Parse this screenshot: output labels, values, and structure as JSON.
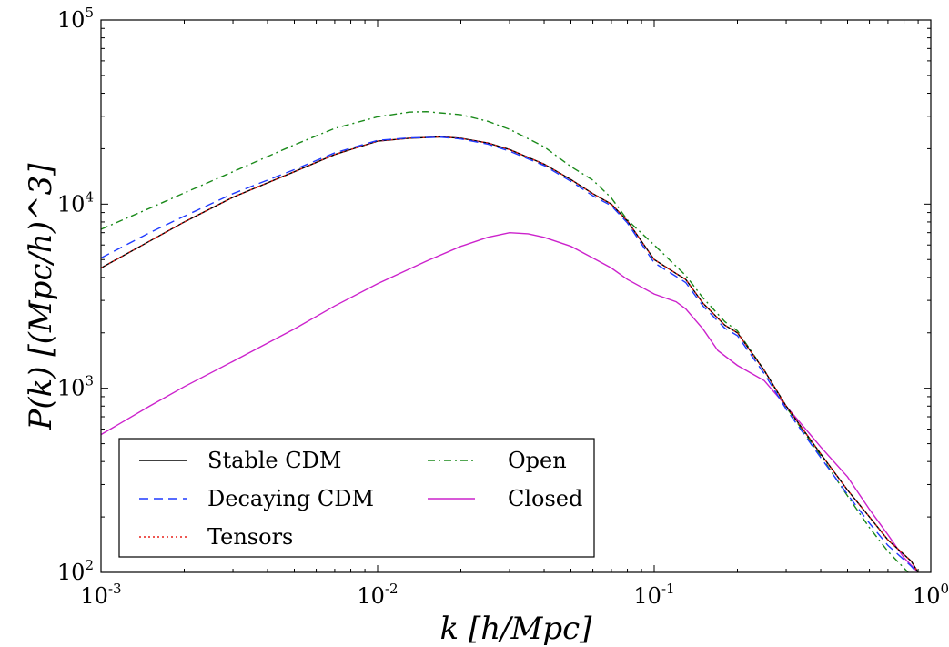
{
  "chart_data": {
    "type": "line",
    "xscale": "log",
    "yscale": "log",
    "xlim": [
      0.001,
      1
    ],
    "ylim": [
      100,
      100000
    ],
    "xlabel": "k [h/Mpc]",
    "ylabel": "P(k) [(Mpc/h)^3]",
    "grid": false,
    "legend_position": "lower-left",
    "x_ticks": [
      {
        "value": 0.001,
        "base": "10",
        "exp": "-3"
      },
      {
        "value": 0.01,
        "base": "10",
        "exp": "-2"
      },
      {
        "value": 0.1,
        "base": "10",
        "exp": "-1"
      },
      {
        "value": 1,
        "base": "10",
        "exp": "0"
      }
    ],
    "y_ticks": [
      {
        "value": 100,
        "base": "10",
        "exp": "2"
      },
      {
        "value": 1000,
        "base": "10",
        "exp": "3"
      },
      {
        "value": 10000,
        "base": "10",
        "exp": "4"
      },
      {
        "value": 100000,
        "base": "10",
        "exp": "5"
      }
    ],
    "series": [
      {
        "name": "Stable CDM",
        "color": "#000000",
        "dash": "",
        "x": [
          0.001,
          0.0015,
          0.002,
          0.003,
          0.005,
          0.007,
          0.01,
          0.013,
          0.017,
          0.02,
          0.025,
          0.03,
          0.04,
          0.05,
          0.06,
          0.07,
          0.08,
          0.1,
          0.12,
          0.13,
          0.15,
          0.18,
          0.2,
          0.25,
          0.3,
          0.4,
          0.5,
          0.6,
          0.7,
          0.85,
          0.9
        ],
        "y": [
          4500,
          6300,
          8000,
          10900,
          15000,
          18600,
          22000,
          22800,
          23200,
          22800,
          21500,
          19800,
          16500,
          13600,
          11400,
          10000,
          8100,
          5000,
          4200,
          3900,
          2900,
          2200,
          2000,
          1250,
          800,
          440,
          280,
          200,
          150,
          115,
          100
        ]
      },
      {
        "name": "Decaying CDM",
        "color": "#1f3aff",
        "dash": "10,6",
        "x": [
          0.001,
          0.0015,
          0.002,
          0.003,
          0.005,
          0.007,
          0.01,
          0.013,
          0.017,
          0.02,
          0.025,
          0.03,
          0.04,
          0.05,
          0.06,
          0.07,
          0.08,
          0.1,
          0.12,
          0.13,
          0.15,
          0.18,
          0.2,
          0.25,
          0.3,
          0.4,
          0.5,
          0.6,
          0.7,
          0.85,
          0.9
        ],
        "y": [
          5100,
          7000,
          8600,
          11400,
          15400,
          19000,
          22200,
          22900,
          23100,
          22600,
          21200,
          19400,
          16200,
          13300,
          11100,
          9800,
          7900,
          4800,
          4050,
          3750,
          2800,
          2120,
          1930,
          1200,
          770,
          420,
          265,
          185,
          140,
          108,
          98
        ]
      },
      {
        "name": "Tensors",
        "color": "#e8201a",
        "dash": "2,3",
        "x": [
          0.001,
          0.0015,
          0.002,
          0.003,
          0.005,
          0.007,
          0.01,
          0.013,
          0.017,
          0.02,
          0.025,
          0.03,
          0.04,
          0.05,
          0.06,
          0.07,
          0.08,
          0.1,
          0.12,
          0.13,
          0.15,
          0.18,
          0.2,
          0.25,
          0.3,
          0.4,
          0.5,
          0.6,
          0.7,
          0.85,
          0.9
        ],
        "y": [
          4500,
          6300,
          8000,
          10900,
          15000,
          18600,
          22000,
          22800,
          23200,
          22800,
          21500,
          19800,
          16500,
          13600,
          11400,
          10000,
          8100,
          5000,
          4200,
          3900,
          2900,
          2200,
          2000,
          1250,
          800,
          440,
          280,
          200,
          150,
          115,
          100
        ]
      },
      {
        "name": "Open",
        "color": "#1a8a1a",
        "dash": "8,4,2,4",
        "x": [
          0.001,
          0.0015,
          0.002,
          0.003,
          0.005,
          0.007,
          0.01,
          0.013,
          0.015,
          0.02,
          0.025,
          0.03,
          0.04,
          0.05,
          0.06,
          0.07,
          0.08,
          0.1,
          0.12,
          0.13,
          0.15,
          0.18,
          0.2,
          0.25,
          0.3,
          0.4,
          0.5,
          0.6,
          0.7,
          0.85
        ],
        "y": [
          7300,
          9500,
          11500,
          15000,
          21000,
          25800,
          29800,
          31600,
          31800,
          30600,
          28200,
          25500,
          20500,
          16000,
          13500,
          10800,
          8200,
          6000,
          4600,
          4100,
          3100,
          2300,
          2050,
          1250,
          790,
          430,
          260,
          175,
          130,
          96
        ]
      },
      {
        "name": "Closed",
        "color": "#cc22cc",
        "dash": "",
        "x": [
          0.001,
          0.0015,
          0.002,
          0.003,
          0.005,
          0.007,
          0.01,
          0.015,
          0.02,
          0.025,
          0.03,
          0.035,
          0.04,
          0.05,
          0.06,
          0.07,
          0.08,
          0.1,
          0.12,
          0.13,
          0.15,
          0.17,
          0.2,
          0.25,
          0.3,
          0.4,
          0.5,
          0.6,
          0.7,
          0.8,
          0.9
        ],
        "y": [
          560,
          800,
          1020,
          1400,
          2100,
          2800,
          3700,
          4900,
          5900,
          6600,
          7000,
          6900,
          6600,
          5900,
          5100,
          4500,
          3900,
          3250,
          2950,
          2700,
          2100,
          1600,
          1330,
          1100,
          800,
          480,
          330,
          220,
          160,
          120,
          100
        ]
      }
    ],
    "legend": {
      "columns": [
        [
          "Stable CDM",
          "Decaying CDM",
          "Tensors"
        ],
        [
          "Open",
          "Closed"
        ]
      ]
    }
  }
}
